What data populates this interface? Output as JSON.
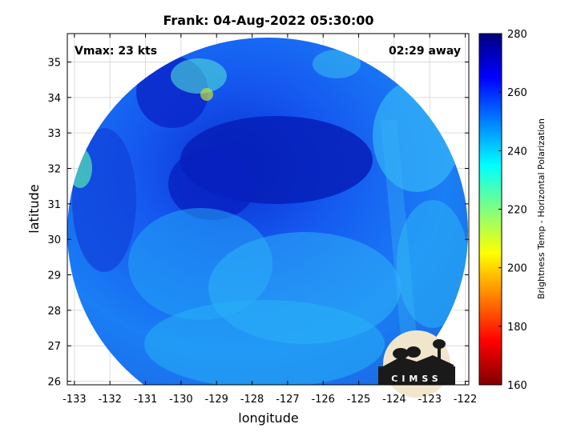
{
  "title": "Frank: 04-Aug-2022 05:30:00",
  "vmax_label": "Vmax: 23 kts",
  "away_label": "02:29 away",
  "xlabel": "longitude",
  "ylabel": "latitude",
  "colorbar": {
    "label": "Brightness Temp - Horizontal Polarization",
    "range": [
      160,
      280
    ],
    "ticks": [
      160,
      180,
      200,
      220,
      240,
      260,
      280
    ],
    "colors": [
      "#7f0000",
      "#ff0000",
      "#ff8000",
      "#ffff00",
      "#80ff80",
      "#00ffff",
      "#0080ff",
      "#0000ff",
      "#00007f"
    ]
  },
  "map": {
    "xlim": [
      -133.2,
      -121.9
    ],
    "ylim": [
      25.9,
      35.8
    ],
    "x_ticks": [
      -133,
      -132,
      -131,
      -130,
      -129,
      -128,
      -127,
      -126,
      -125,
      -124,
      -123,
      -122
    ],
    "y_ticks": [
      26,
      27,
      28,
      29,
      30,
      31,
      32,
      33,
      34,
      35
    ],
    "grid": true
  },
  "logo": {
    "text": "CIMSS"
  }
}
